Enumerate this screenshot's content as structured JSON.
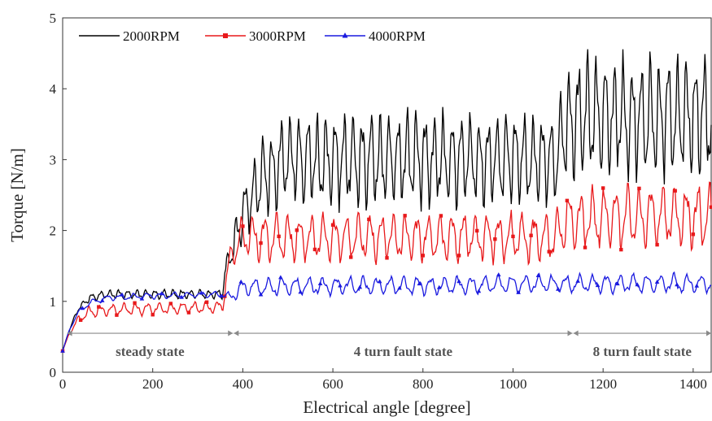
{
  "chart_data": {
    "type": "line",
    "title": "",
    "xlabel": "Electrical angle [degree]",
    "ylabel": "Torque [N/m]",
    "xlim": [
      0,
      1440
    ],
    "ylim": [
      0,
      5
    ],
    "xticks": [
      0,
      200,
      400,
      600,
      800,
      1000,
      1200,
      1400
    ],
    "yticks": [
      0,
      1,
      2,
      3,
      4,
      5
    ],
    "grid": false,
    "legend": {
      "placement": "top-left",
      "orientation": "horizontal"
    },
    "series": [
      {
        "name": "2000RPM",
        "color": "#000000",
        "marker": "none",
        "levels": [
          [
            0,
            0.3
          ],
          [
            15,
            0.6
          ],
          [
            35,
            0.9
          ],
          [
            60,
            1.05
          ],
          [
            100,
            1.1
          ],
          [
            200,
            1.1
          ],
          [
            300,
            1.1
          ],
          [
            355,
            1.1
          ],
          [
            360,
            1.4
          ],
          [
            380,
            1.8
          ],
          [
            410,
            2.4
          ],
          [
            450,
            2.8
          ],
          [
            500,
            3.0
          ],
          [
            600,
            3.0
          ],
          [
            800,
            3.0
          ],
          [
            1000,
            3.0
          ],
          [
            1095,
            3.0
          ],
          [
            1120,
            3.5
          ],
          [
            1150,
            3.6
          ],
          [
            1300,
            3.6
          ],
          [
            1440,
            3.6
          ]
        ],
        "amplitude": [
          [
            0,
            0.0
          ],
          [
            60,
            0.06
          ],
          [
            355,
            0.06
          ],
          [
            380,
            0.3
          ],
          [
            450,
            0.55
          ],
          [
            520,
            0.6
          ],
          [
            1095,
            0.6
          ],
          [
            1130,
            0.8
          ],
          [
            1440,
            0.8
          ]
        ],
        "period": 20
      },
      {
        "name": "3000RPM",
        "color": "#e8191b",
        "marker": "square",
        "levels": [
          [
            0,
            0.3
          ],
          [
            15,
            0.55
          ],
          [
            35,
            0.75
          ],
          [
            60,
            0.85
          ],
          [
            100,
            0.88
          ],
          [
            355,
            0.92
          ],
          [
            365,
            1.4
          ],
          [
            380,
            1.75
          ],
          [
            400,
            1.9
          ],
          [
            600,
            1.9
          ],
          [
            800,
            1.9
          ],
          [
            1095,
            1.9
          ],
          [
            1120,
            2.15
          ],
          [
            1300,
            2.2
          ],
          [
            1440,
            2.2
          ]
        ],
        "amplitude": [
          [
            0,
            0.0
          ],
          [
            60,
            0.08
          ],
          [
            355,
            0.08
          ],
          [
            380,
            0.25
          ],
          [
            450,
            0.32
          ],
          [
            1095,
            0.32
          ],
          [
            1130,
            0.4
          ],
          [
            1440,
            0.42
          ]
        ],
        "period": 26
      },
      {
        "name": "4000RPM",
        "color": "#1a1adf",
        "marker": "triangle",
        "levels": [
          [
            0,
            0.3
          ],
          [
            15,
            0.6
          ],
          [
            35,
            0.85
          ],
          [
            60,
            0.98
          ],
          [
            100,
            1.05
          ],
          [
            200,
            1.08
          ],
          [
            355,
            1.1
          ],
          [
            370,
            1.05
          ],
          [
            400,
            1.2
          ],
          [
            600,
            1.22
          ],
          [
            800,
            1.22
          ],
          [
            1095,
            1.25
          ],
          [
            1120,
            1.25
          ],
          [
            1440,
            1.25
          ]
        ],
        "amplitude": [
          [
            0,
            0.0
          ],
          [
            60,
            0.04
          ],
          [
            355,
            0.04
          ],
          [
            380,
            0.1
          ],
          [
            450,
            0.12
          ],
          [
            1095,
            0.12
          ],
          [
            1440,
            0.13
          ]
        ],
        "period": 30
      }
    ],
    "regions": [
      {
        "label": "steady state",
        "start": 10,
        "end": 378
      },
      {
        "label": "4 turn fault state",
        "start": 380,
        "end": 1132
      },
      {
        "label": "8 turn fault state",
        "start": 1134,
        "end": 1440
      }
    ],
    "region_arrow_y": 0.55
  }
}
